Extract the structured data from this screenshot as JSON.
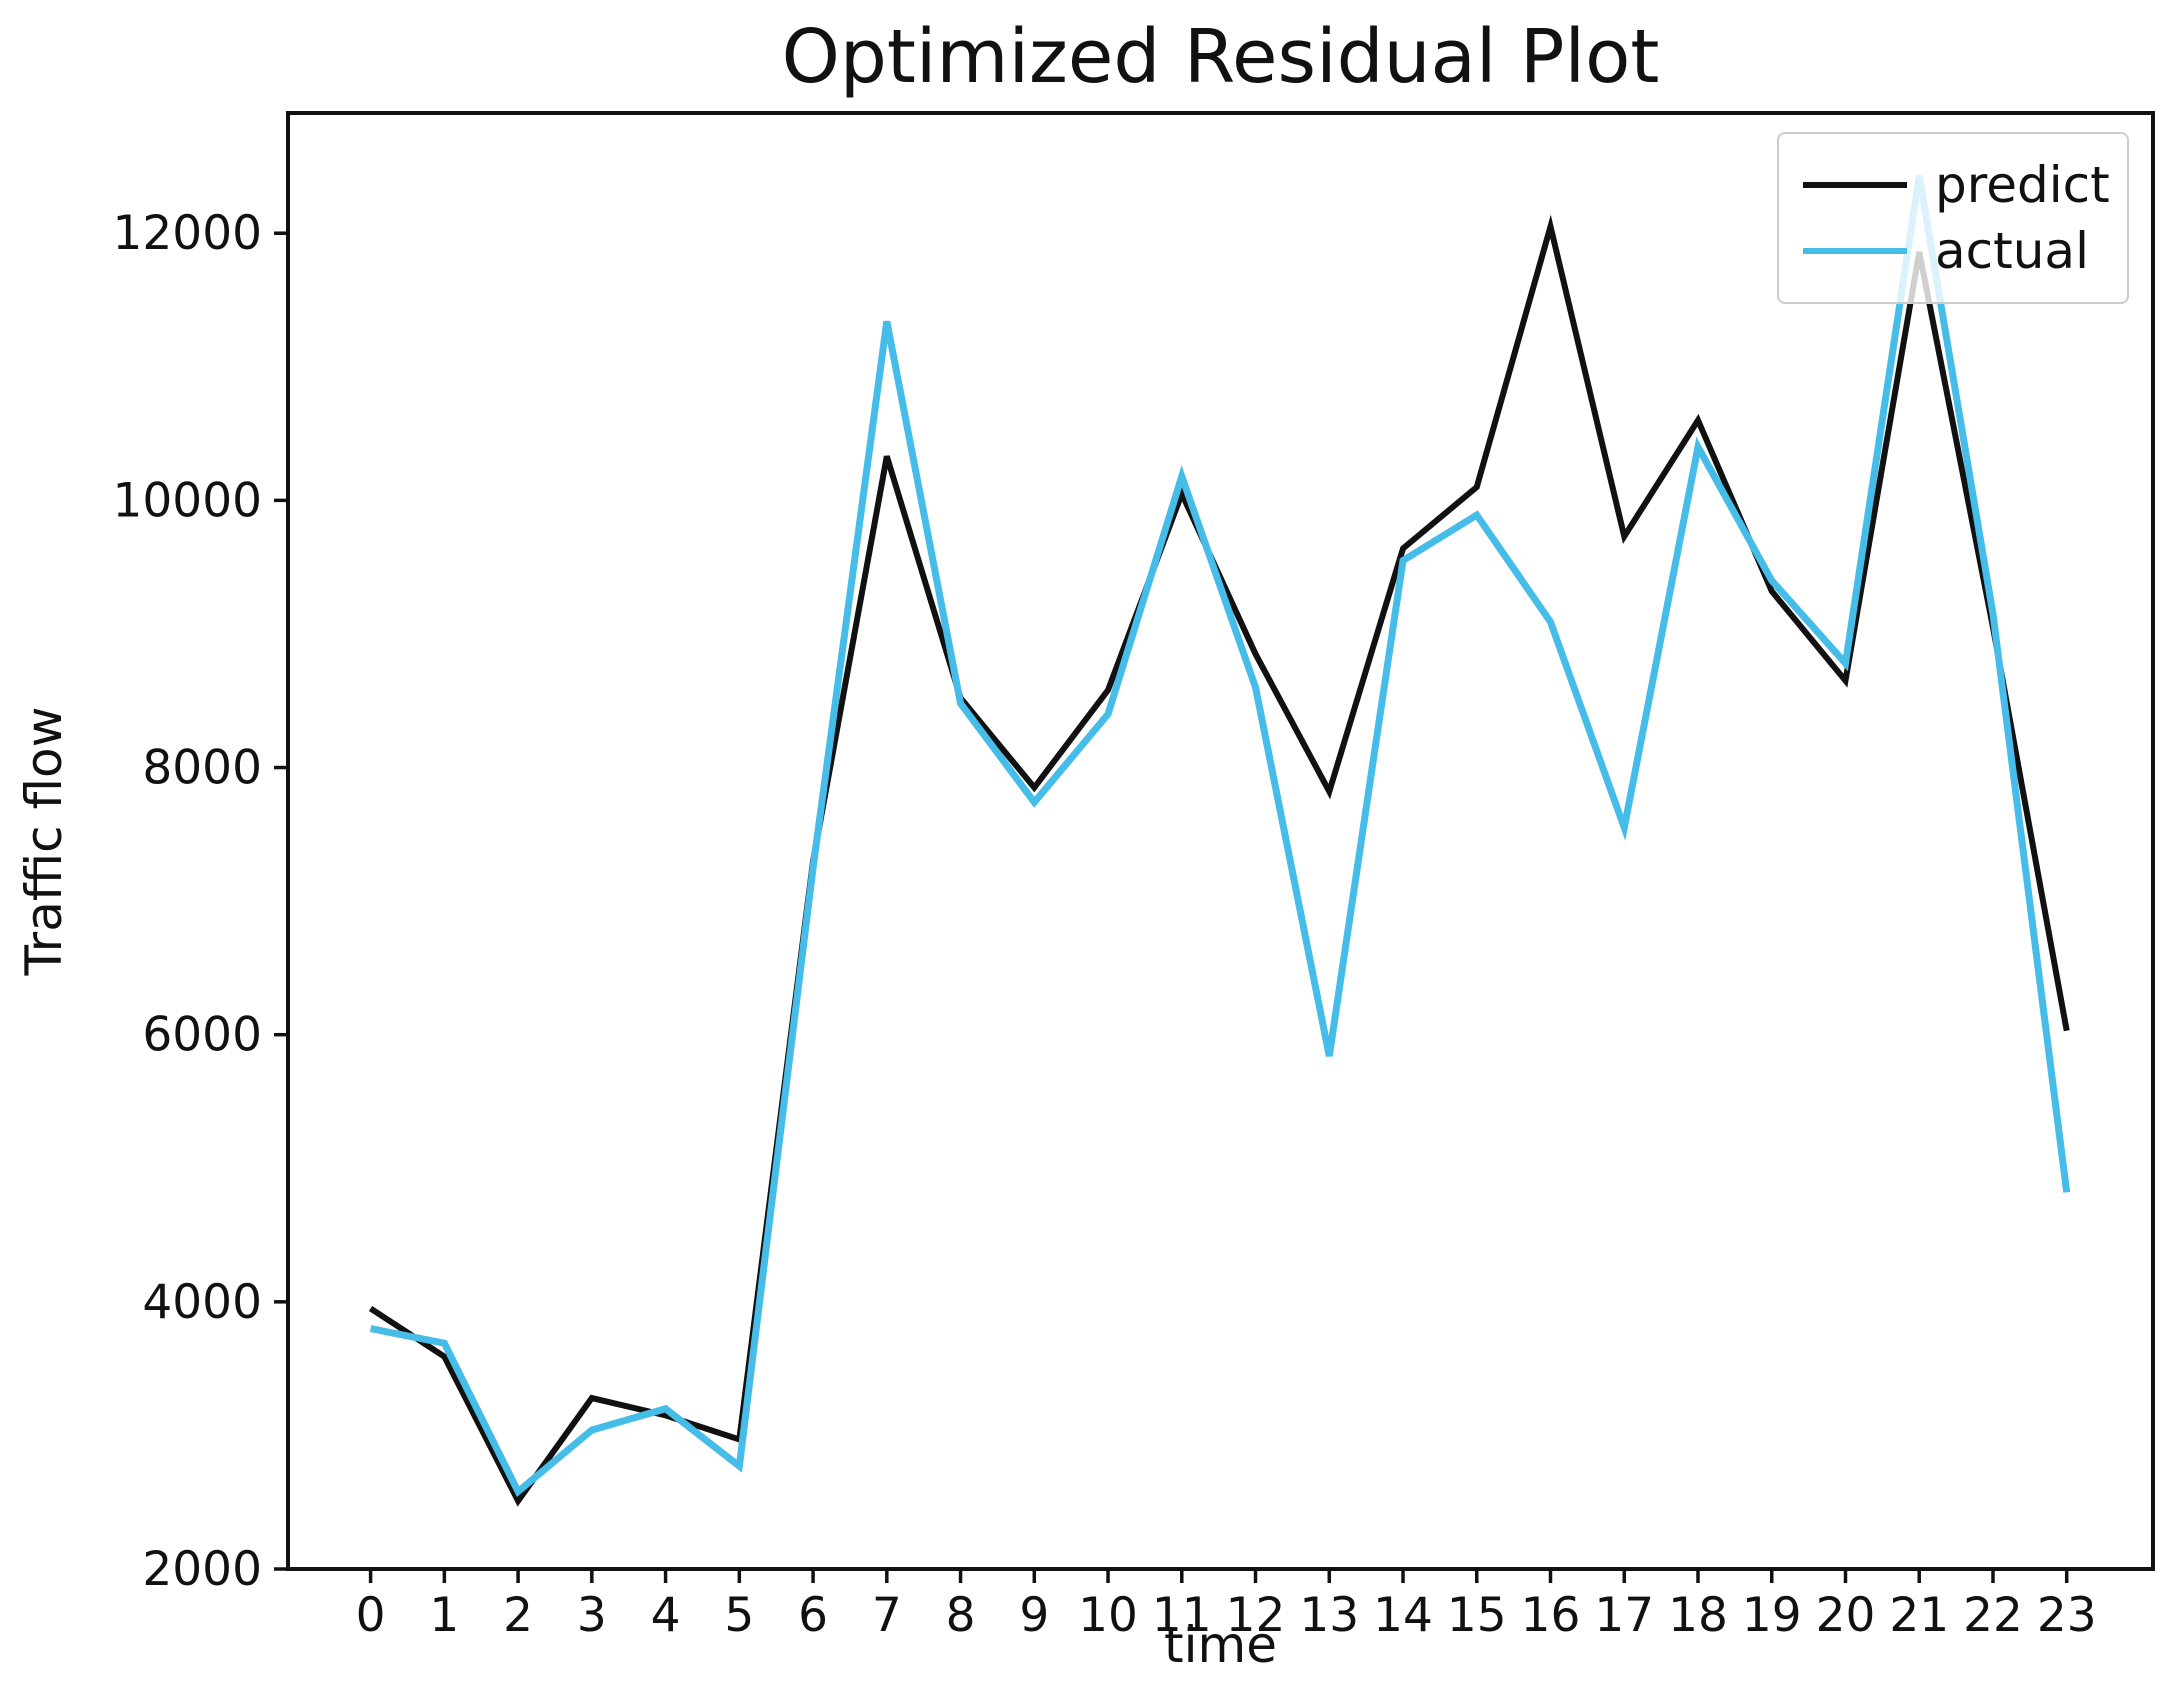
{
  "title": "Optimized Residual Plot",
  "axis_labels": {
    "x": "time",
    "y": "Traffic flow"
  },
  "legend": {
    "items": [
      {
        "label": "predict",
        "color": "#111111",
        "thickness": 6
      },
      {
        "label": "actual",
        "color": "#46bce8",
        "thickness": 6
      }
    ]
  },
  "axes": {
    "x_tick_labels": [
      "0",
      "1",
      "2",
      "3",
      "4",
      "5",
      "6",
      "7",
      "8",
      "9",
      "10",
      "11",
      "12",
      "13",
      "14",
      "15",
      "16",
      "17",
      "18",
      "19",
      "20",
      "21",
      "22",
      "23"
    ],
    "y_tick_labels": [
      "2000",
      "4000",
      "6000",
      "8000",
      "10000",
      "12000"
    ]
  },
  "chart_data": {
    "type": "line",
    "x": [
      0,
      1,
      2,
      3,
      4,
      5,
      6,
      7,
      8,
      9,
      10,
      11,
      12,
      13,
      14,
      15,
      16,
      17,
      18,
      19,
      20,
      21,
      22,
      23
    ],
    "series": [
      {
        "name": "predict",
        "color": "#111111",
        "stroke_width": 6,
        "values": [
          3950,
          3590,
          2510,
          3280,
          3150,
          2970,
          7300,
          10330,
          8520,
          7850,
          8580,
          10050,
          8850,
          7820,
          9640,
          10100,
          12050,
          9730,
          10600,
          9320,
          8650,
          11860,
          9050,
          6030
        ]
      },
      {
        "name": "actual",
        "color": "#46bce8",
        "stroke_width": 7,
        "values": [
          3800,
          3690,
          2580,
          3040,
          3200,
          2770,
          7250,
          11340,
          8480,
          7740,
          8400,
          10180,
          8600,
          5840,
          9550,
          9890,
          9090,
          7550,
          10400,
          9400,
          8780,
          12430,
          9150,
          4820
        ]
      }
    ],
    "title": "Optimized Residual Plot",
    "xlabel": "time",
    "ylabel": "Traffic flow",
    "xlim": [
      -1.12,
      24.17
    ],
    "ylim": [
      2000,
      12900
    ],
    "grid": false,
    "legend_position": "upper right"
  }
}
